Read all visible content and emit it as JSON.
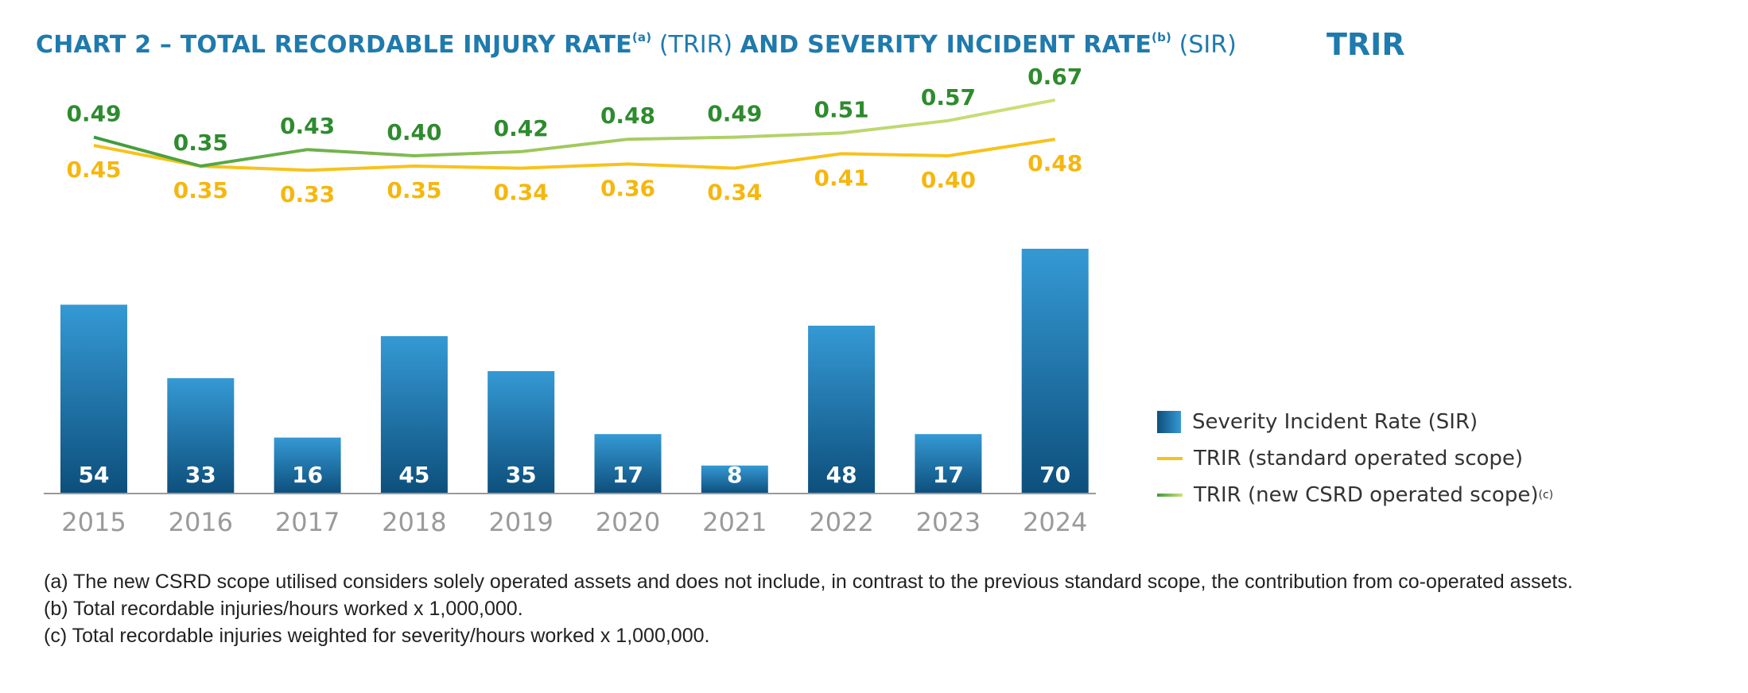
{
  "title": {
    "prefix": "CHART 2 – TOTAL RECORDABLE INJURY RATE",
    "sup_a": "(a)",
    "trir_abbr": " (TRIR) ",
    "middle": "AND SEVERITY INCIDENT RATE",
    "sup_b": "(b)",
    "sir_abbr": " (SIR)",
    "tag": "TRIR"
  },
  "colors": {
    "title": "#1f7aad",
    "bar_dark": "#0d4f7c",
    "bar_light": "#3599d4",
    "trir_standard": "#f7c21b",
    "trir_new_dark": "#3d9a3c",
    "trir_new_light": "#cfe07a",
    "new_label": "#2e8b2e",
    "std_label": "#f5b70f",
    "axis_label": "#9a9a9a"
  },
  "chart_data": {
    "type": "bar+line",
    "categories": [
      "2015",
      "2016",
      "2017",
      "2018",
      "2019",
      "2020",
      "2021",
      "2022",
      "2023",
      "2024"
    ],
    "series": [
      {
        "name": "Severity Incident Rate (SIR)",
        "type": "bar",
        "values": [
          54,
          33,
          16,
          45,
          35,
          17,
          8,
          48,
          17,
          70
        ]
      },
      {
        "name": "TRIR (standard operated scope)",
        "type": "line",
        "values": [
          0.45,
          0.35,
          0.33,
          0.35,
          0.34,
          0.36,
          0.34,
          0.41,
          0.4,
          0.48
        ]
      },
      {
        "name": "TRIR (new CSRD operated scope)",
        "type": "line",
        "values": [
          0.49,
          0.35,
          0.43,
          0.4,
          0.42,
          0.48,
          0.49,
          0.51,
          0.57,
          0.67
        ]
      }
    ],
    "bar_labels": [
      "54",
      "33",
      "16",
      "45",
      "35",
      "17",
      "8",
      "48",
      "17",
      "70"
    ],
    "std_labels": [
      "0.45",
      "0.35",
      "0.33",
      "0.35",
      "0.34",
      "0.36",
      "0.34",
      "0.41",
      "0.40",
      "0.48"
    ],
    "new_labels": [
      "0.49",
      "0.35",
      "0.43",
      "0.40",
      "0.42",
      "0.48",
      "0.49",
      "0.51",
      "0.57",
      "0.67"
    ]
  },
  "legend": {
    "sir": "Severity Incident Rate (SIR)",
    "std": "TRIR (standard operated scope)",
    "new": "TRIR (new CSRD operated scope)",
    "new_sup": "(c)"
  },
  "notes": [
    "(a) The new CSRD scope utilised considers solely operated assets and does not include, in contrast to the previous standard scope, the contribution from co-operated assets.",
    "(b) Total recordable injuries/hours worked x 1,000,000.",
    "(c) Total recordable injuries weighted for severity/hours worked x 1,000,000."
  ]
}
